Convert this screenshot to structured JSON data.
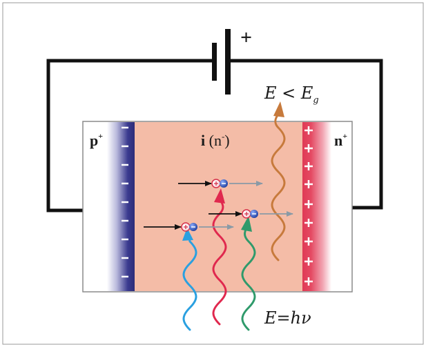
{
  "labels": {
    "p_region": "p",
    "p_sup": "+",
    "n_region": "n",
    "n_sup": "+",
    "i_region": "i",
    "i_paren_open": " (n",
    "i_sup": "-",
    "i_paren_close": ")",
    "battery_plus": "+",
    "energy_low_E": "E",
    "energy_low_lt": " < E",
    "energy_low_sub": "g",
    "energy_photon": "E=hν"
  },
  "colors": {
    "frame": "#9a9a9a",
    "wire": "#111111",
    "intrinsic": "#f4bca7",
    "p_side": "#3b3b8f",
    "n_side": "#e03a55",
    "photon_blue": "#2aa0e0",
    "photon_red": "#e0284e",
    "photon_green": "#2f9a6b",
    "photon_orange": "#c77a3c",
    "electron": "#2a4fb0",
    "hole": "#d6304a",
    "arrow_dark": "#111111",
    "arrow_gray": "#8a9aa6"
  }
}
